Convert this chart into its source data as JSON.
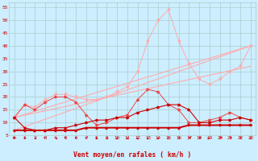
{
  "x": [
    0,
    1,
    2,
    3,
    4,
    5,
    6,
    7,
    8,
    9,
    10,
    11,
    12,
    13,
    14,
    15,
    16,
    17,
    18,
    19,
    20,
    21,
    22,
    23
  ],
  "line_flat": [
    7,
    7,
    7,
    7,
    7,
    7,
    7,
    8,
    8,
    8,
    8,
    8,
    8,
    8,
    8,
    8,
    8,
    9,
    9,
    9,
    9,
    9,
    9,
    9
  ],
  "line_mean": [
    12,
    8,
    7,
    7,
    8,
    8,
    9,
    10,
    11,
    11,
    12,
    12,
    14,
    15,
    16,
    17,
    17,
    15,
    10,
    10,
    11,
    11,
    12,
    11
  ],
  "line_gust": [
    12,
    17,
    15,
    18,
    20,
    20,
    18,
    13,
    9,
    10,
    12,
    13,
    19,
    23,
    22,
    17,
    15,
    10,
    10,
    11,
    12,
    14,
    12,
    11
  ],
  "line_peak": [
    12,
    17,
    16,
    19,
    21,
    21,
    20,
    19,
    19,
    20,
    22,
    24,
    30,
    42,
    50,
    54,
    42,
    33,
    27,
    25,
    27,
    30,
    32,
    40
  ],
  "trend1_x": [
    0,
    23
  ],
  "trend1_y": [
    12,
    40
  ],
  "trend2_x": [
    0,
    23
  ],
  "trend2_y": [
    12,
    32
  ],
  "trend3_x": [
    0,
    23
  ],
  "trend3_y": [
    7,
    40
  ],
  "ylim": [
    5,
    57
  ],
  "yticks": [
    5,
    10,
    15,
    20,
    25,
    30,
    35,
    40,
    45,
    50,
    55
  ],
  "xticks": [
    0,
    1,
    2,
    3,
    4,
    5,
    6,
    7,
    8,
    9,
    10,
    11,
    12,
    13,
    14,
    15,
    16,
    17,
    18,
    19,
    20,
    21,
    22,
    23
  ],
  "xlabel": "Vent moyen/en rafales ( km/h )",
  "bg_color": "#cceeff",
  "grid_color": "#aacccc",
  "color_dark_red": "#cc0000",
  "color_med_red": "#ee4444",
  "color_light_red": "#ffaaaa",
  "arrow_angles": [
    270,
    305,
    315,
    335,
    325,
    335,
    340,
    345,
    355,
    0,
    0,
    0,
    5,
    5,
    5,
    10,
    20,
    30,
    30,
    35,
    30,
    30,
    20,
    10
  ]
}
